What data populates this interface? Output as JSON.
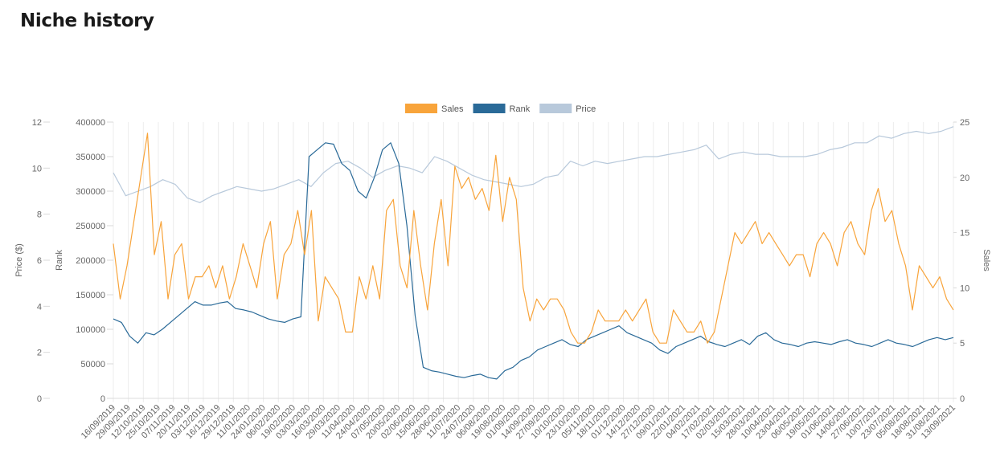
{
  "page": {
    "title": "Niche history"
  },
  "chart_data": {
    "type": "line",
    "title": "",
    "legend": [
      {
        "name": "Sales",
        "color": "#f8a43b"
      },
      {
        "name": "Rank",
        "color": "#2a6a98"
      },
      {
        "name": "Price",
        "color": "#b8c9db"
      }
    ],
    "legend_position": "top-center",
    "axes": {
      "price": {
        "label": "Price ($)",
        "side": "left",
        "min": 0,
        "max": 12,
        "ticks": [
          0,
          2,
          4,
          6,
          8,
          10,
          12
        ]
      },
      "rank": {
        "label": "Rank",
        "side": "left",
        "min": 0,
        "max": 400000,
        "ticks": [
          0,
          50000,
          100000,
          150000,
          200000,
          250000,
          300000,
          350000,
          400000
        ]
      },
      "sales": {
        "label": "Sales",
        "side": "right",
        "min": 0,
        "max": 25,
        "ticks": [
          0,
          5,
          10,
          15,
          20,
          25
        ]
      }
    },
    "x_start": "16/09/2019",
    "x_end": "13/09/2021",
    "x_tick_labels": [
      "16/09/2019",
      "29/09/2019",
      "12/10/2019",
      "25/10/2019",
      "07/11/2019",
      "20/11/2019",
      "03/12/2019",
      "16/12/2019",
      "29/12/2019",
      "11/01/2020",
      "24/01/2020",
      "06/02/2020",
      "19/02/2020",
      "03/03/2020",
      "16/03/2020",
      "29/03/2020",
      "11/04/2020",
      "24/04/2020",
      "07/05/2020",
      "20/05/2020",
      "02/06/2020",
      "15/06/2020",
      "28/06/2020",
      "11/07/2020",
      "24/07/2020",
      "06/08/2020",
      "19/08/2020",
      "01/09/2020",
      "14/09/2020",
      "27/09/2020",
      "10/10/2020",
      "23/10/2020",
      "05/11/2020",
      "18/11/2020",
      "01/12/2020",
      "14/12/2020",
      "27/12/2020",
      "09/01/2021",
      "22/01/2021",
      "04/02/2021",
      "17/02/2021",
      "02/03/2021",
      "15/03/2021",
      "28/03/2021",
      "10/04/2021",
      "23/04/2021",
      "06/05/2021",
      "19/05/2021",
      "01/06/2021",
      "14/06/2021",
      "27/06/2021",
      "10/07/2021",
      "23/07/2021",
      "05/08/2021",
      "18/08/2021",
      "31/08/2021",
      "13/09/2021"
    ],
    "series": [
      {
        "name": "Sales",
        "axis": "sales",
        "values": [
          14,
          9,
          12,
          16,
          20,
          24,
          13,
          16,
          9,
          13,
          14,
          9,
          11,
          11,
          12,
          10,
          12,
          9,
          11,
          14,
          12,
          10,
          14,
          16,
          9,
          13,
          14,
          17,
          13,
          17,
          7,
          11,
          10,
          9,
          6,
          6,
          11,
          9,
          12,
          9,
          17,
          18,
          12,
          10,
          17,
          12,
          8,
          14,
          18,
          12,
          21,
          19,
          20,
          18,
          19,
          17,
          22,
          16,
          20,
          18,
          10,
          7,
          9,
          8,
          9,
          9,
          8,
          6,
          5,
          5,
          6,
          8,
          7,
          7,
          7,
          8,
          7,
          8,
          9,
          6,
          5,
          5,
          8,
          7,
          6,
          6,
          7,
          5,
          6,
          9,
          12,
          15,
          14,
          15,
          16,
          14,
          15,
          14,
          13,
          12,
          13,
          13,
          11,
          14,
          15,
          14,
          12,
          15,
          16,
          14,
          13,
          17,
          19,
          16,
          17,
          14,
          12,
          8,
          12,
          11,
          10,
          11,
          9,
          8
        ]
      },
      {
        "name": "Rank",
        "axis": "rank",
        "values": [
          115000,
          110000,
          90000,
          80000,
          95000,
          92000,
          100000,
          110000,
          120000,
          130000,
          140000,
          135000,
          135000,
          138000,
          140000,
          130000,
          128000,
          125000,
          120000,
          115000,
          112000,
          110000,
          115000,
          118000,
          350000,
          360000,
          370000,
          368000,
          340000,
          330000,
          300000,
          290000,
          320000,
          360000,
          370000,
          340000,
          250000,
          120000,
          45000,
          40000,
          38000,
          35000,
          32000,
          30000,
          33000,
          35000,
          30000,
          28000,
          40000,
          45000,
          55000,
          60000,
          70000,
          75000,
          80000,
          85000,
          78000,
          75000,
          85000,
          90000,
          95000,
          100000,
          105000,
          95000,
          90000,
          85000,
          80000,
          70000,
          65000,
          75000,
          80000,
          85000,
          90000,
          82000,
          78000,
          75000,
          80000,
          85000,
          78000,
          90000,
          95000,
          85000,
          80000,
          78000,
          75000,
          80000,
          82000,
          80000,
          78000,
          82000,
          85000,
          80000,
          78000,
          75000,
          80000,
          85000,
          80000,
          78000,
          75000,
          80000,
          85000,
          88000,
          85000,
          88000
        ]
      },
      {
        "name": "Price",
        "axis": "price",
        "values": [
          9.8,
          8.8,
          9.0,
          9.2,
          9.5,
          9.3,
          8.7,
          8.5,
          8.8,
          9.0,
          9.2,
          9.1,
          9.0,
          9.1,
          9.3,
          9.5,
          9.2,
          9.8,
          10.2,
          10.3,
          10.0,
          9.6,
          9.9,
          10.1,
          10.0,
          9.8,
          10.5,
          10.3,
          10.0,
          9.7,
          9.5,
          9.4,
          9.3,
          9.2,
          9.3,
          9.6,
          9.7,
          10.3,
          10.1,
          10.3,
          10.2,
          10.3,
          10.4,
          10.5,
          10.5,
          10.6,
          10.7,
          10.8,
          11.0,
          10.4,
          10.6,
          10.7,
          10.6,
          10.6,
          10.5,
          10.5,
          10.5,
          10.6,
          10.8,
          10.9,
          11.1,
          11.1,
          11.4,
          11.3,
          11.5,
          11.6,
          11.5,
          11.6,
          11.8
        ]
      }
    ]
  }
}
